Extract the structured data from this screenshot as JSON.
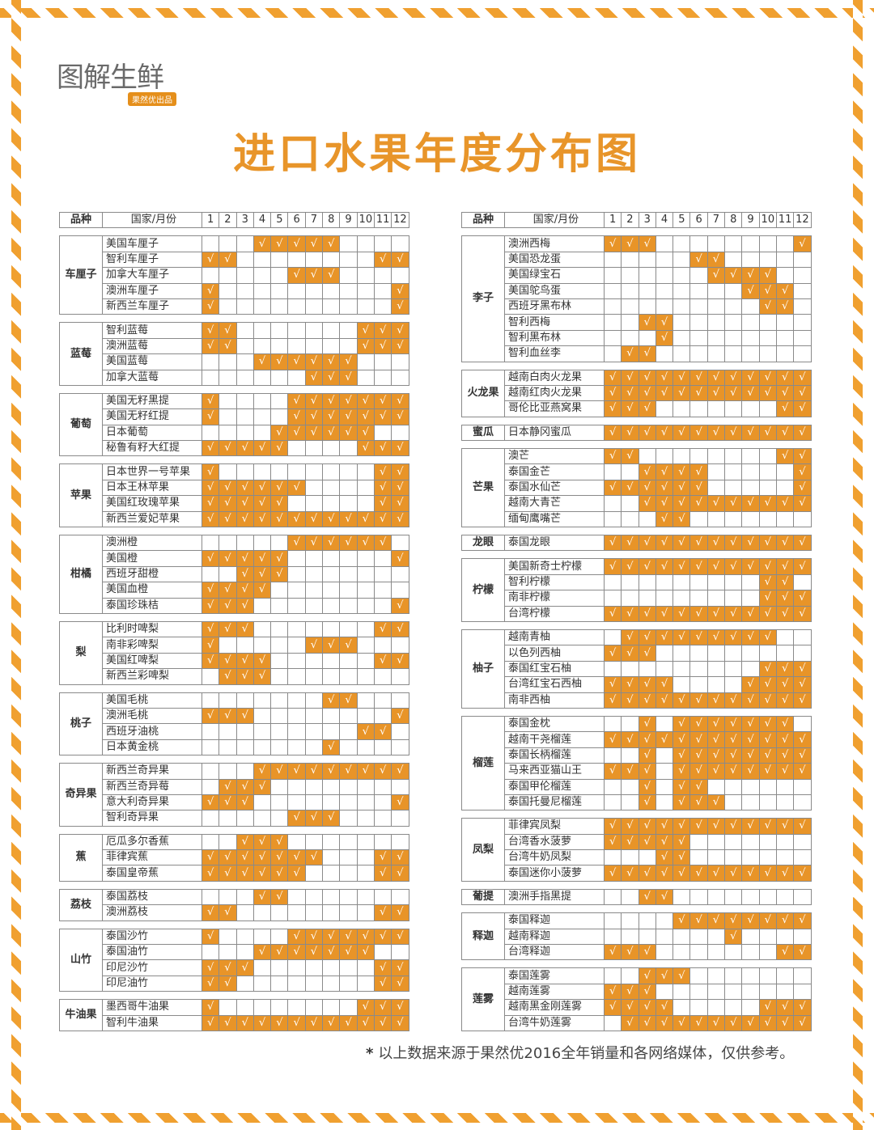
{
  "brand": {
    "name": "图解生鲜",
    "tag": "果然优出品"
  },
  "title": "进口水果年度分布图",
  "header": {
    "fruit": "品种",
    "variety": "国家/月份",
    "months": [
      "1",
      "2",
      "3",
      "4",
      "5",
      "6",
      "7",
      "8",
      "9",
      "10",
      "11",
      "12"
    ]
  },
  "check_mark": "√",
  "colors": {
    "accent": "#e89428",
    "title": "#e8952a",
    "border_stripe": "#f0a030"
  },
  "left_groups": [
    {
      "fruit": "车厘子",
      "rows": [
        {
          "name": "美国车厘子",
          "months": [
            4,
            5,
            6,
            7,
            8
          ]
        },
        {
          "name": "智利车厘子",
          "months": [
            1,
            2,
            11,
            12
          ]
        },
        {
          "name": "加拿大车厘子",
          "months": [
            6,
            7,
            8
          ]
        },
        {
          "name": "澳洲车厘子",
          "months": [
            1,
            12
          ]
        },
        {
          "name": "新西兰车厘子",
          "months": [
            1,
            12
          ]
        }
      ]
    },
    {
      "fruit": "蓝莓",
      "rows": [
        {
          "name": "智利蓝莓",
          "months": [
            1,
            2,
            10,
            11,
            12
          ]
        },
        {
          "name": "澳洲蓝莓",
          "months": [
            1,
            2,
            10,
            11,
            12
          ]
        },
        {
          "name": "美国蓝莓",
          "months": [
            4,
            5,
            6,
            7,
            8,
            9
          ]
        },
        {
          "name": "加拿大蓝莓",
          "months": [
            7,
            8,
            9
          ]
        }
      ]
    },
    {
      "fruit": "葡萄",
      "rows": [
        {
          "name": "美国无籽黑提",
          "months": [
            1,
            6,
            7,
            8,
            9,
            10,
            11,
            12
          ]
        },
        {
          "name": "美国无籽红提",
          "months": [
            1,
            6,
            7,
            8,
            9,
            10,
            11,
            12
          ]
        },
        {
          "name": "日本葡萄",
          "months": [
            5,
            6,
            7,
            8,
            9,
            10
          ]
        },
        {
          "name": "秘鲁有籽大红提",
          "months": [
            1,
            2,
            3,
            4,
            5,
            10,
            11,
            12
          ]
        }
      ]
    },
    {
      "fruit": "苹果",
      "rows": [
        {
          "name": "日本世界一号苹果",
          "months": [
            1,
            11,
            12
          ]
        },
        {
          "name": "日本王林苹果",
          "months": [
            1,
            2,
            3,
            4,
            5,
            6,
            11,
            12
          ]
        },
        {
          "name": "美国红玫瑰苹果",
          "months": [
            1,
            2,
            3,
            4,
            5,
            11,
            12
          ]
        },
        {
          "name": "新西兰爱妃苹果",
          "months": [
            1,
            2,
            3,
            4,
            5,
            6,
            7,
            8,
            9,
            10,
            11,
            12
          ]
        }
      ]
    },
    {
      "fruit": "柑橘",
      "rows": [
        {
          "name": "澳洲橙",
          "months": [
            6,
            7,
            8,
            9,
            10,
            11
          ]
        },
        {
          "name": "美国橙",
          "months": [
            1,
            2,
            3,
            4,
            5,
            12
          ]
        },
        {
          "name": "西班牙甜橙",
          "months": [
            3,
            4,
            5
          ]
        },
        {
          "name": "美国血橙",
          "months": [
            1,
            2,
            3,
            4
          ]
        },
        {
          "name": "泰国珍珠桔",
          "months": [
            1,
            2,
            3,
            12
          ]
        }
      ]
    },
    {
      "fruit": "梨",
      "rows": [
        {
          "name": "比利时啤梨",
          "months": [
            1,
            2,
            3,
            11,
            12
          ]
        },
        {
          "name": "南非彩啤梨",
          "months": [
            1,
            7,
            8,
            9
          ]
        },
        {
          "name": "美国红啤梨",
          "months": [
            1,
            2,
            3,
            4,
            11,
            12
          ]
        },
        {
          "name": "新西兰彩啤梨",
          "months": [
            2,
            3,
            4
          ]
        }
      ]
    },
    {
      "fruit": "桃子",
      "rows": [
        {
          "name": "美国毛桃",
          "months": [
            8,
            9
          ]
        },
        {
          "name": "澳洲毛桃",
          "months": [
            1,
            2,
            3,
            12
          ]
        },
        {
          "name": "西班牙油桃",
          "months": [
            10,
            11
          ]
        },
        {
          "name": "日本黄金桃",
          "months": [
            8
          ]
        }
      ]
    },
    {
      "fruit": "奇异果",
      "rows": [
        {
          "name": "新西兰奇异果",
          "months": [
            4,
            5,
            6,
            7,
            8,
            9,
            10,
            11,
            12
          ]
        },
        {
          "name": "新西兰奇异莓",
          "months": [
            2,
            3,
            4
          ]
        },
        {
          "name": "意大利奇异果",
          "months": [
            1,
            2,
            3,
            12
          ]
        },
        {
          "name": "智利奇异果",
          "months": [
            6,
            7,
            8
          ]
        }
      ]
    },
    {
      "fruit": "蕉",
      "rows": [
        {
          "name": "厄瓜多尔香蕉",
          "months": [
            3,
            4,
            5
          ]
        },
        {
          "name": "菲律宾蕉",
          "months": [
            1,
            2,
            3,
            4,
            5,
            6,
            7,
            11,
            12
          ]
        },
        {
          "name": "泰国皇帝蕉",
          "months": [
            1,
            2,
            3,
            4,
            5,
            6,
            11,
            12
          ]
        }
      ]
    },
    {
      "fruit": "荔枝",
      "rows": [
        {
          "name": "泰国荔枝",
          "months": [
            4,
            5
          ]
        },
        {
          "name": "澳洲荔枝",
          "months": [
            1,
            2,
            11,
            12
          ]
        }
      ]
    },
    {
      "fruit": "山竹",
      "rows": [
        {
          "name": "泰国沙竹",
          "months": [
            1,
            6,
            7,
            8,
            9,
            10,
            11,
            12
          ]
        },
        {
          "name": "泰国油竹",
          "months": [
            4,
            5,
            6,
            7,
            8,
            9,
            10
          ]
        },
        {
          "name": "印尼沙竹",
          "months": [
            1,
            2,
            3,
            11,
            12
          ]
        },
        {
          "name": "印尼油竹",
          "months": [
            1,
            2,
            11,
            12
          ]
        }
      ]
    },
    {
      "fruit": "牛油果",
      "rows": [
        {
          "name": "墨西哥牛油果",
          "months": [
            1,
            10,
            11,
            12
          ]
        },
        {
          "name": "智利牛油果",
          "months": [
            1,
            2,
            3,
            4,
            5,
            6,
            7,
            8,
            9,
            10,
            11,
            12
          ]
        }
      ]
    }
  ],
  "right_groups": [
    {
      "fruit": "李子",
      "rows": [
        {
          "name": "澳洲西梅",
          "months": [
            1,
            2,
            3,
            12
          ]
        },
        {
          "name": "美国恐龙蛋",
          "months": [
            6,
            7
          ]
        },
        {
          "name": "美国绿宝石",
          "months": [
            7,
            8,
            9,
            10
          ]
        },
        {
          "name": "美国鸵鸟蛋",
          "months": [
            9,
            10,
            11
          ]
        },
        {
          "name": "西班牙黑布林",
          "months": [
            10,
            11
          ]
        },
        {
          "name": "智利西梅",
          "months": [
            3,
            4
          ]
        },
        {
          "name": "智利黑布林",
          "months": [
            4
          ]
        },
        {
          "name": "智利血丝李",
          "months": [
            2,
            3
          ]
        }
      ]
    },
    {
      "fruit": "火龙果",
      "rows": [
        {
          "name": "越南白肉火龙果",
          "months": [
            1,
            2,
            3,
            4,
            5,
            6,
            7,
            8,
            9,
            10,
            11,
            12
          ]
        },
        {
          "name": "越南红肉火龙果",
          "months": [
            1,
            2,
            3,
            4,
            5,
            6,
            7,
            8,
            9,
            10,
            11,
            12
          ]
        },
        {
          "name": "哥伦比亚燕窝果",
          "months": [
            1,
            2,
            3,
            11,
            12
          ]
        }
      ]
    },
    {
      "fruit": "蜜瓜",
      "rows": [
        {
          "name": "日本静冈蜜瓜",
          "months": [
            1,
            2,
            3,
            4,
            5,
            6,
            7,
            8,
            9,
            10,
            11,
            12
          ]
        }
      ]
    },
    {
      "fruit": "芒果",
      "rows": [
        {
          "name": "澳芒",
          "months": [
            1,
            2,
            11,
            12
          ]
        },
        {
          "name": "泰国金芒",
          "months": [
            3,
            4,
            5,
            6,
            12
          ]
        },
        {
          "name": "泰国水仙芒",
          "months": [
            1,
            2,
            3,
            4,
            5,
            6,
            12
          ]
        },
        {
          "name": "越南大青芒",
          "months": [
            3,
            4,
            5,
            6,
            7,
            8,
            9,
            10,
            11,
            12
          ]
        },
        {
          "name": "缅甸鹰嘴芒",
          "months": [
            4,
            5
          ]
        }
      ]
    },
    {
      "fruit": "龙眼",
      "rows": [
        {
          "name": "泰国龙眼",
          "months": [
            1,
            2,
            3,
            4,
            5,
            6,
            7,
            8,
            9,
            10,
            11,
            12
          ]
        }
      ]
    },
    {
      "fruit": "柠檬",
      "rows": [
        {
          "name": "美国新奇士柠檬",
          "months": [
            1,
            2,
            3,
            4,
            5,
            6,
            7,
            8,
            9,
            10,
            11,
            12
          ]
        },
        {
          "name": "智利柠檬",
          "months": [
            10,
            11
          ]
        },
        {
          "name": "南非柠檬",
          "months": [
            10,
            11,
            12
          ]
        },
        {
          "name": "台湾柠檬",
          "months": [
            1,
            2,
            3,
            4,
            5,
            6,
            7,
            8,
            9,
            10,
            11,
            12
          ]
        }
      ]
    },
    {
      "fruit": "柚子",
      "rows": [
        {
          "name": "越南青柚",
          "months": [
            2,
            3,
            4,
            5,
            6,
            7,
            8,
            9,
            10
          ]
        },
        {
          "name": "以色列西柚",
          "months": [
            1,
            2,
            3
          ]
        },
        {
          "name": "泰国红宝石柚",
          "months": [
            10,
            11,
            12
          ]
        },
        {
          "name": "台湾红宝石西柚",
          "months": [
            1,
            2,
            3,
            4,
            9,
            10,
            11,
            12
          ]
        },
        {
          "name": "南非西柚",
          "months": [
            1,
            2,
            3,
            4,
            5,
            6,
            7,
            8,
            9,
            10,
            11,
            12
          ]
        }
      ]
    },
    {
      "fruit": "榴莲",
      "rows": [
        {
          "name": "泰国金枕",
          "months": [
            3,
            5,
            6,
            7,
            8,
            9,
            10,
            11
          ]
        },
        {
          "name": "越南干尧榴莲",
          "months": [
            1,
            2,
            3,
            4,
            5,
            6,
            7,
            8,
            9,
            10,
            11,
            12
          ]
        },
        {
          "name": "泰国长柄榴莲",
          "months": [
            3,
            5,
            6,
            7,
            8,
            9,
            10,
            11,
            12
          ]
        },
        {
          "name": "马来西亚猫山王",
          "months": [
            1,
            2,
            3,
            5,
            6,
            7,
            8,
            9,
            10,
            11,
            12
          ]
        },
        {
          "name": "泰国甲伦榴莲",
          "months": [
            3,
            5,
            6
          ]
        },
        {
          "name": "泰国托曼尼榴莲",
          "months": [
            3,
            5,
            6,
            7
          ]
        }
      ]
    },
    {
      "fruit": "凤梨",
      "rows": [
        {
          "name": "菲律宾凤梨",
          "months": [
            1,
            2,
            3,
            4,
            5,
            6,
            7,
            8,
            9,
            10,
            11,
            12
          ]
        },
        {
          "name": "台湾香水菠萝",
          "months": [
            1,
            2,
            3,
            4,
            5
          ]
        },
        {
          "name": "台湾牛奶凤梨",
          "months": [
            4,
            5
          ]
        },
        {
          "name": "泰国迷你小菠萝",
          "months": [
            1,
            2,
            3,
            4,
            5,
            6,
            7,
            8,
            9,
            10,
            11,
            12
          ]
        }
      ]
    },
    {
      "fruit": "葡提",
      "rows": [
        {
          "name": "澳洲手指黑提",
          "months": [
            3,
            4
          ]
        }
      ]
    },
    {
      "fruit": "释迦",
      "rows": [
        {
          "name": "泰国释迦",
          "months": [
            5,
            6,
            7,
            8,
            9,
            10,
            11,
            12
          ]
        },
        {
          "name": "越南释迦",
          "months": [
            8
          ]
        },
        {
          "name": "台湾释迦",
          "months": [
            1,
            2,
            3,
            11,
            12
          ]
        }
      ]
    },
    {
      "fruit": "莲雾",
      "rows": [
        {
          "name": "泰国莲雾",
          "months": [
            3,
            4,
            5
          ]
        },
        {
          "name": "越南莲雾",
          "months": [
            1,
            2,
            3
          ]
        },
        {
          "name": "越南黑金刚莲雾",
          "months": [
            1,
            2,
            3,
            4,
            10,
            11,
            12
          ]
        },
        {
          "name": "台湾牛奶莲雾",
          "months": [
            2,
            3,
            4,
            5,
            6,
            7,
            8,
            9,
            10,
            11,
            12
          ]
        }
      ]
    }
  ],
  "footnote": {
    "star": "*",
    "text": "以上数据来源于果然优2016全年销量和各网络媒体，仅供参考。"
  }
}
